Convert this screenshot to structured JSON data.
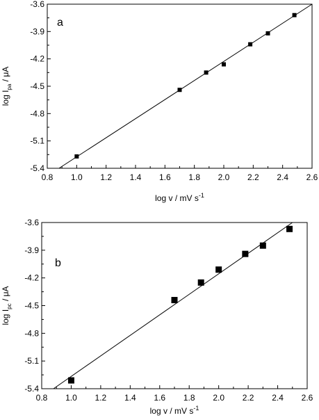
{
  "chart_data": [
    {
      "type": "scatter",
      "panel_label": "a",
      "xlabel": {
        "main": "log v / mV s",
        "sup": "-1"
      },
      "ylabel": {
        "pre": "log I",
        "sub": "pa",
        "post": " / μA"
      },
      "xlim": [
        0.8,
        2.6
      ],
      "ylim": [
        -5.4,
        -3.6
      ],
      "xticks": [
        "0.8",
        "1.0",
        "1.2",
        "1.4",
        "1.6",
        "1.8",
        "2.0",
        "2.2",
        "2.4",
        "2.6"
      ],
      "yticks": [
        "-5.4",
        "-5.1",
        "-4.8",
        "-4.5",
        "-4.2",
        "-3.9",
        "-3.6"
      ],
      "points": [
        {
          "x": 1.0,
          "y": -5.27
        },
        {
          "x": 1.7,
          "y": -4.54
        },
        {
          "x": 1.88,
          "y": -4.35
        },
        {
          "x": 2.0,
          "y": -4.26
        },
        {
          "x": 2.18,
          "y": -4.04
        },
        {
          "x": 2.3,
          "y": -3.92
        },
        {
          "x": 2.48,
          "y": -3.72
        }
      ],
      "fit_line": {
        "x": [
          0.88,
          2.6
        ],
        "y": [
          -5.4,
          -3.6
        ]
      }
    },
    {
      "type": "scatter",
      "panel_label": "b",
      "xlabel": {
        "main": "log v / mV s",
        "sup": "-1"
      },
      "ylabel": {
        "pre": "log I",
        "sub": "pc",
        "post": " / μA"
      },
      "xlim": [
        0.8,
        2.6
      ],
      "ylim": [
        -5.4,
        -3.6
      ],
      "xticks": [
        "0.8",
        "1.0",
        "1.2",
        "1.4",
        "1.6",
        "1.8",
        "2.0",
        "2.2",
        "2.4",
        "2.6"
      ],
      "yticks": [
        "-5.4",
        "-5.1",
        "-4.8",
        "-4.5",
        "-4.2",
        "-3.9",
        "-3.6"
      ],
      "points": [
        {
          "x": 1.0,
          "y": -5.31
        },
        {
          "x": 1.7,
          "y": -4.44
        },
        {
          "x": 1.88,
          "y": -4.25
        },
        {
          "x": 2.0,
          "y": -4.11
        },
        {
          "x": 2.18,
          "y": -3.94
        },
        {
          "x": 2.3,
          "y": -3.85
        },
        {
          "x": 2.48,
          "y": -3.67
        }
      ],
      "fit_line": {
        "x": [
          0.88,
          2.5
        ],
        "y": [
          -5.4,
          -3.6
        ]
      }
    }
  ]
}
